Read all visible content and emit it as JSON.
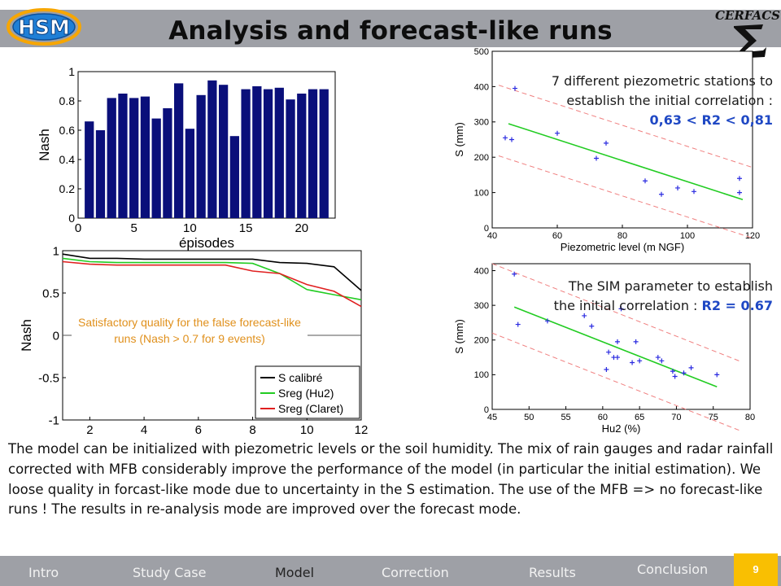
{
  "header": {
    "title": "Analysis and forecast-like runs",
    "logo_left": "HSM",
    "logo_right": "CERFACS"
  },
  "annotations": {
    "piezo_line1": "7 different piezometric stations to",
    "piezo_line2": "establish the initial correlation :",
    "piezo_range": "0,63 < R2 < 0,81",
    "sim_line1": "The SIM parameter to establish",
    "sim_line2": "the initial correlation : ",
    "sim_r2": "R2 = 0.67",
    "sat_note": "Satisfactory quality for the false forecast-like runs (Nash > 0.7 for 9 events)"
  },
  "summary": "The model can be initialized with piezometric levels or the soil humidity. The mix of rain gauges and radar rainfall corrected with MFB considerably improve the performance of the model (in particular the initial estimation). We loose quality in forcast-like mode due to uncertainty in the S estimation. The use of the MFB => no forecast-like runs ! The results in re-analysis mode are improved over the forecast mode.",
  "nav": {
    "items": [
      "Intro",
      "Study Case",
      "Model",
      "Correction",
      "Results",
      "Conclusion"
    ],
    "active": "Model",
    "page_number": "9"
  },
  "colors": {
    "bar": "#0a0f7a",
    "nav_bar": "#9ea0a6",
    "page_badge": "#f9bf02",
    "annotation_blue": "#1f48c4",
    "note_orange": "#e0901c",
    "fit_line": "#22cc22",
    "band_line": "#f08080",
    "points": "#2a2ae0"
  },
  "chart_data": [
    {
      "type": "bar",
      "xlabel": "épisodes",
      "ylabel": "Nash",
      "xlim": [
        0,
        23
      ],
      "ylim": [
        0,
        1
      ],
      "xticks": [
        0,
        5,
        10,
        15,
        20
      ],
      "yticks": [
        0,
        0.2,
        0.4,
        0.6,
        0.8,
        1
      ],
      "categories": [
        1,
        2,
        3,
        4,
        5,
        6,
        7,
        8,
        9,
        10,
        11,
        12,
        13,
        14,
        15,
        16,
        17,
        18,
        19,
        20,
        21,
        22
      ],
      "values": [
        0.66,
        0.6,
        0.82,
        0.85,
        0.82,
        0.83,
        0.68,
        0.75,
        0.92,
        0.61,
        0.84,
        0.94,
        0.91,
        0.56,
        0.88,
        0.9,
        0.88,
        0.89,
        0.81,
        0.85,
        0.88,
        0.88
      ]
    },
    {
      "type": "line",
      "xlabel": "",
      "ylabel": "Nash",
      "xlim": [
        1,
        12
      ],
      "ylim": [
        -1,
        1
      ],
      "xticks": [
        2,
        4,
        6,
        8,
        10,
        12
      ],
      "yticks": [
        -1,
        -0.5,
        0,
        0.5,
        1
      ],
      "legend_position": "bottom-right",
      "x": [
        1,
        2,
        3,
        4,
        5,
        6,
        7,
        8,
        9,
        10,
        11,
        12
      ],
      "series": [
        {
          "name": "S calibré",
          "color": "#000000",
          "values": [
            0.96,
            0.91,
            0.91,
            0.9,
            0.9,
            0.9,
            0.9,
            0.9,
            0.86,
            0.85,
            0.81,
            0.53
          ]
        },
        {
          "name": "Sreg (Hu2)",
          "color": "#22cc22",
          "values": [
            0.91,
            0.87,
            0.86,
            0.86,
            0.86,
            0.86,
            0.86,
            0.85,
            0.73,
            0.54,
            0.48,
            0.42
          ]
        },
        {
          "name": "Sreg (Claret)",
          "color": "#e02020",
          "values": [
            0.87,
            0.84,
            0.83,
            0.83,
            0.83,
            0.83,
            0.83,
            0.76,
            0.73,
            0.6,
            0.52,
            0.34
          ]
        }
      ]
    },
    {
      "type": "scatter",
      "xlabel": "Piezometric level (m NGF)",
      "ylabel": "S (mm)",
      "xlim": [
        40,
        120
      ],
      "ylim": [
        0,
        500
      ],
      "xticks": [
        40,
        60,
        80,
        100,
        120
      ],
      "yticks": [
        0,
        100,
        200,
        300,
        400,
        500
      ],
      "points": [
        [
          44,
          255
        ],
        [
          46,
          250
        ],
        [
          47,
          395
        ],
        [
          60,
          268
        ],
        [
          72,
          197
        ],
        [
          75,
          240
        ],
        [
          87,
          133
        ],
        [
          92,
          95
        ],
        [
          97,
          113
        ],
        [
          102,
          103
        ],
        [
          116,
          140
        ],
        [
          116,
          100
        ]
      ],
      "fit": [
        [
          45,
          295
        ],
        [
          117,
          80
        ]
      ],
      "band": 100
    },
    {
      "type": "scatter",
      "xlabel": "Hu2 (%)",
      "ylabel": "S (mm)",
      "xlim": [
        45,
        80
      ],
      "ylim": [
        0,
        420
      ],
      "xticks": [
        45,
        50,
        55,
        60,
        65,
        70,
        75,
        80
      ],
      "yticks": [
        0,
        100,
        200,
        300,
        400
      ],
      "points": [
        [
          48,
          390
        ],
        [
          48.5,
          245
        ],
        [
          52.5,
          255
        ],
        [
          57.5,
          270
        ],
        [
          58.5,
          240
        ],
        [
          60.5,
          115
        ],
        [
          60.8,
          165
        ],
        [
          61.5,
          150
        ],
        [
          62,
          195
        ],
        [
          62,
          150
        ],
        [
          62.5,
          290
        ],
        [
          64,
          135
        ],
        [
          64.5,
          195
        ],
        [
          65,
          140
        ],
        [
          67.5,
          150
        ],
        [
          68,
          140
        ],
        [
          69.5,
          110
        ],
        [
          69.8,
          95
        ],
        [
          71,
          105
        ],
        [
          72,
          120
        ],
        [
          75.5,
          100
        ]
      ],
      "fit": [
        [
          48,
          295
        ],
        [
          75.5,
          65
        ]
      ],
      "band": 100
    }
  ]
}
